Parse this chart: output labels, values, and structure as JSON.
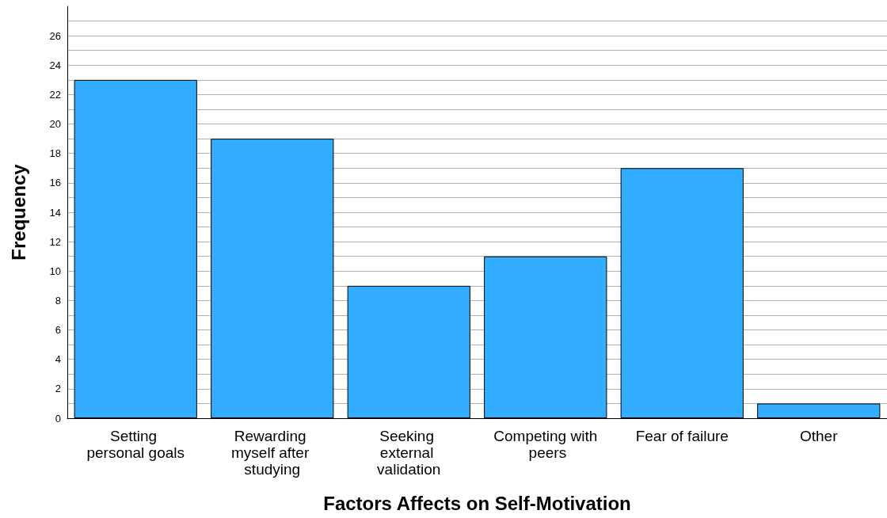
{
  "chart_data": {
    "type": "bar",
    "xlabel": "Factors Affects on Self-Motivation",
    "ylabel": "Frequency",
    "categories": [
      "Setting personal goals",
      "Rewarding myself after studying",
      "Seeking external validation",
      "Competing with peers",
      "Fear of failure",
      "Other"
    ],
    "values": [
      23,
      19,
      9,
      11,
      17,
      1
    ],
    "color": "#33adff",
    "ylim": [
      0,
      28
    ],
    "yticks": [
      0,
      {
        "value": 1,
        "label": null
      },
      2,
      {
        "value": 3,
        "label": null
      },
      4,
      {
        "value": 5,
        "label": null
      },
      6,
      {
        "value": 7,
        "label": null
      },
      8,
      {
        "value": 9,
        "label": null
      },
      10,
      {
        "value": 11,
        "label": null
      },
      12,
      {
        "value": 13,
        "label": null
      },
      14,
      {
        "value": 15,
        "label": null
      },
      16,
      {
        "value": 17,
        "label": null
      },
      18,
      {
        "value": 19,
        "label": null
      },
      20,
      {
        "value": 21,
        "label": null
      },
      22,
      {
        "value": 23,
        "label": null
      },
      24,
      {
        "value": 25,
        "label": null
      },
      26,
      {
        "value": 27,
        "label": null
      }
    ],
    "grid": "y"
  }
}
